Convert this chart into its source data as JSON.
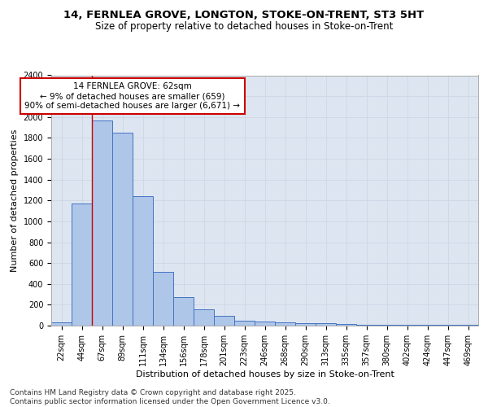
{
  "title_line1": "14, FERNLEA GROVE, LONGTON, STOKE-ON-TRENT, ST3 5HT",
  "title_line2": "Size of property relative to detached houses in Stoke-on-Trent",
  "xlabel": "Distribution of detached houses by size in Stoke-on-Trent",
  "ylabel": "Number of detached properties",
  "categories": [
    "22sqm",
    "44sqm",
    "67sqm",
    "89sqm",
    "111sqm",
    "134sqm",
    "156sqm",
    "178sqm",
    "201sqm",
    "223sqm",
    "246sqm",
    "268sqm",
    "290sqm",
    "313sqm",
    "335sqm",
    "357sqm",
    "380sqm",
    "402sqm",
    "424sqm",
    "447sqm",
    "469sqm"
  ],
  "values": [
    30,
    1170,
    1970,
    1850,
    1240,
    515,
    270,
    155,
    90,
    50,
    40,
    35,
    20,
    20,
    15,
    5,
    5,
    5,
    5,
    5,
    5
  ],
  "bar_color": "#aec6e8",
  "bar_edge_color": "#4472c4",
  "annotation_text": "14 FERNLEA GROVE: 62sqm\n← 9% of detached houses are smaller (659)\n90% of semi-detached houses are larger (6,671) →",
  "annotation_box_color": "#ffffff",
  "annotation_box_edge": "#cc0000",
  "vline_color": "#cc0000",
  "vline_x": 1.5,
  "grid_color": "#d0d8e8",
  "background_color": "#dde6f0",
  "ylim": [
    0,
    2400
  ],
  "yticks": [
    0,
    200,
    400,
    600,
    800,
    1000,
    1200,
    1400,
    1600,
    1800,
    2000,
    2200,
    2400
  ],
  "footer": "Contains HM Land Registry data © Crown copyright and database right 2025.\nContains public sector information licensed under the Open Government Licence v3.0.",
  "title_fontsize": 9.5,
  "subtitle_fontsize": 8.5,
  "axis_label_fontsize": 8,
  "tick_fontsize": 7,
  "annotation_fontsize": 7.5,
  "footer_fontsize": 6.5
}
